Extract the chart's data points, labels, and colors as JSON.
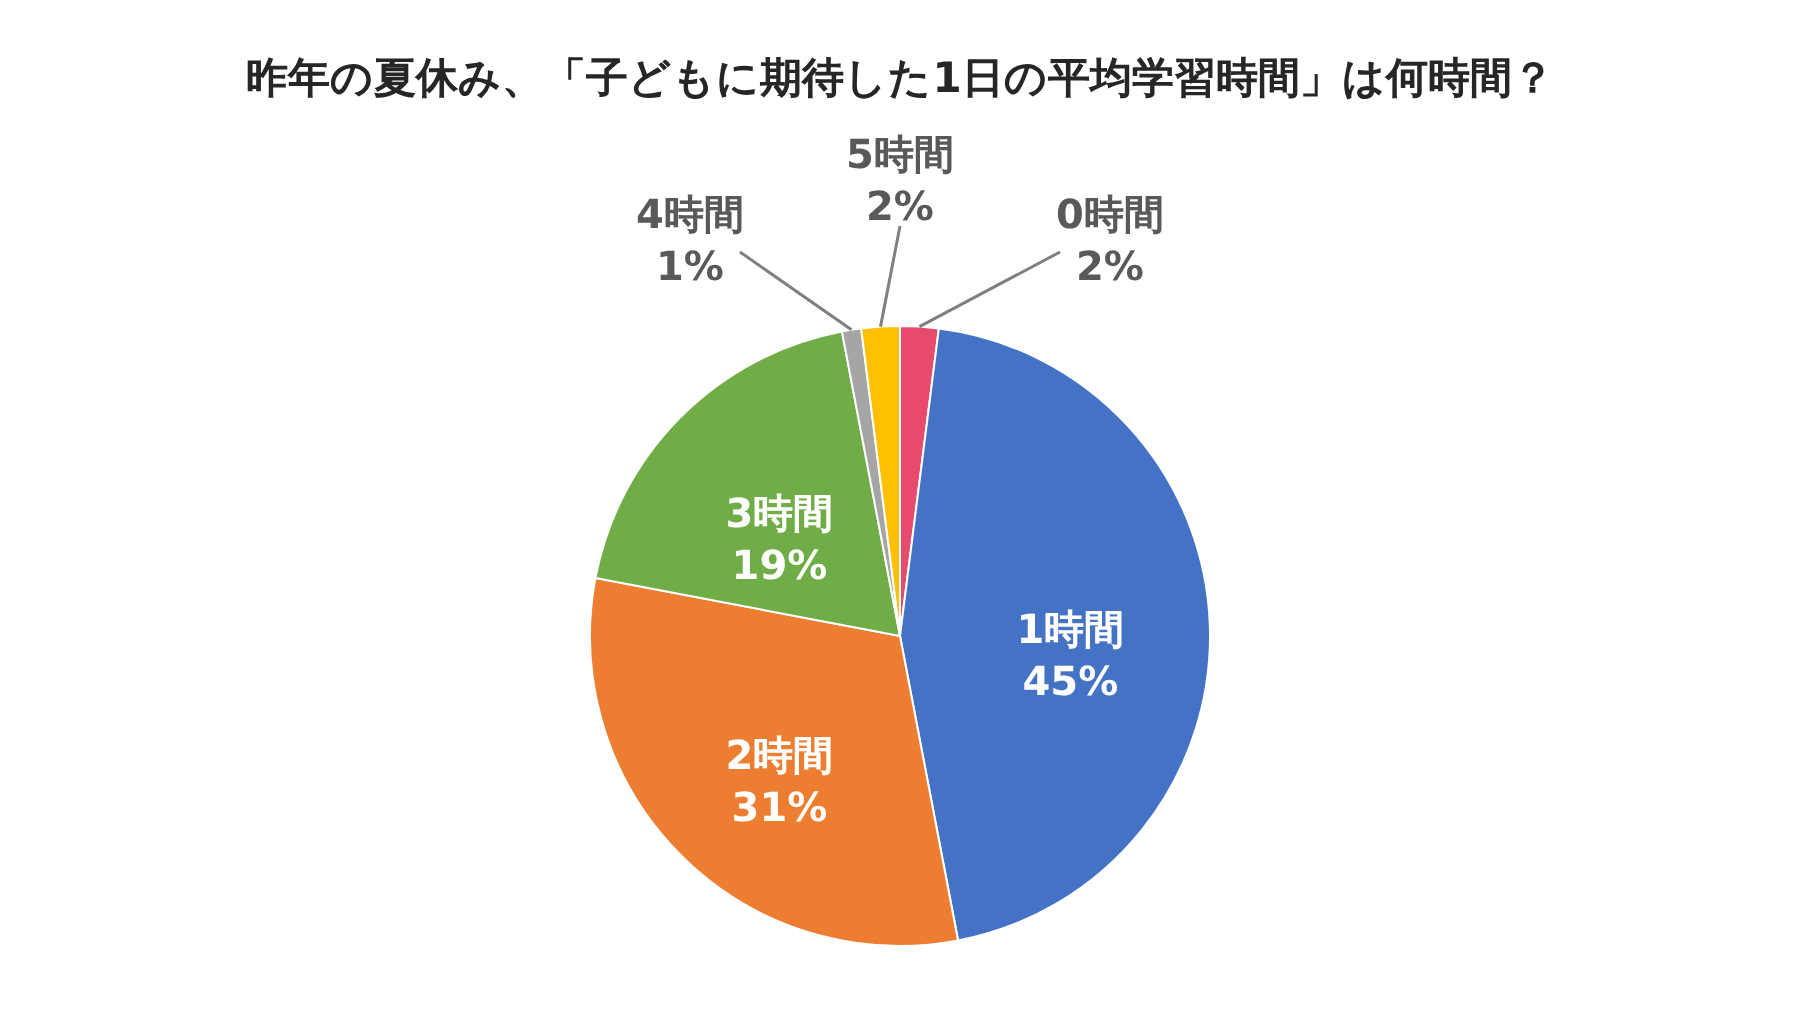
{
  "chart_data": {
    "type": "pie",
    "title": "昨年の夏休み、「子どもに期待した1日の平均学習時間」は何時間？",
    "categories": [
      "0時間",
      "1時間",
      "2時間",
      "3時間",
      "4時間",
      "5時間"
    ],
    "values": [
      2,
      45,
      31,
      19,
      1,
      2
    ],
    "colors": [
      "#e84a6e",
      "#4472c4",
      "#ed7d31",
      "#70ad47",
      "#a5a5a5",
      "#ffc000"
    ],
    "value_labels": [
      "2%",
      "45%",
      "31%",
      "19%",
      "1%",
      "2%"
    ]
  }
}
